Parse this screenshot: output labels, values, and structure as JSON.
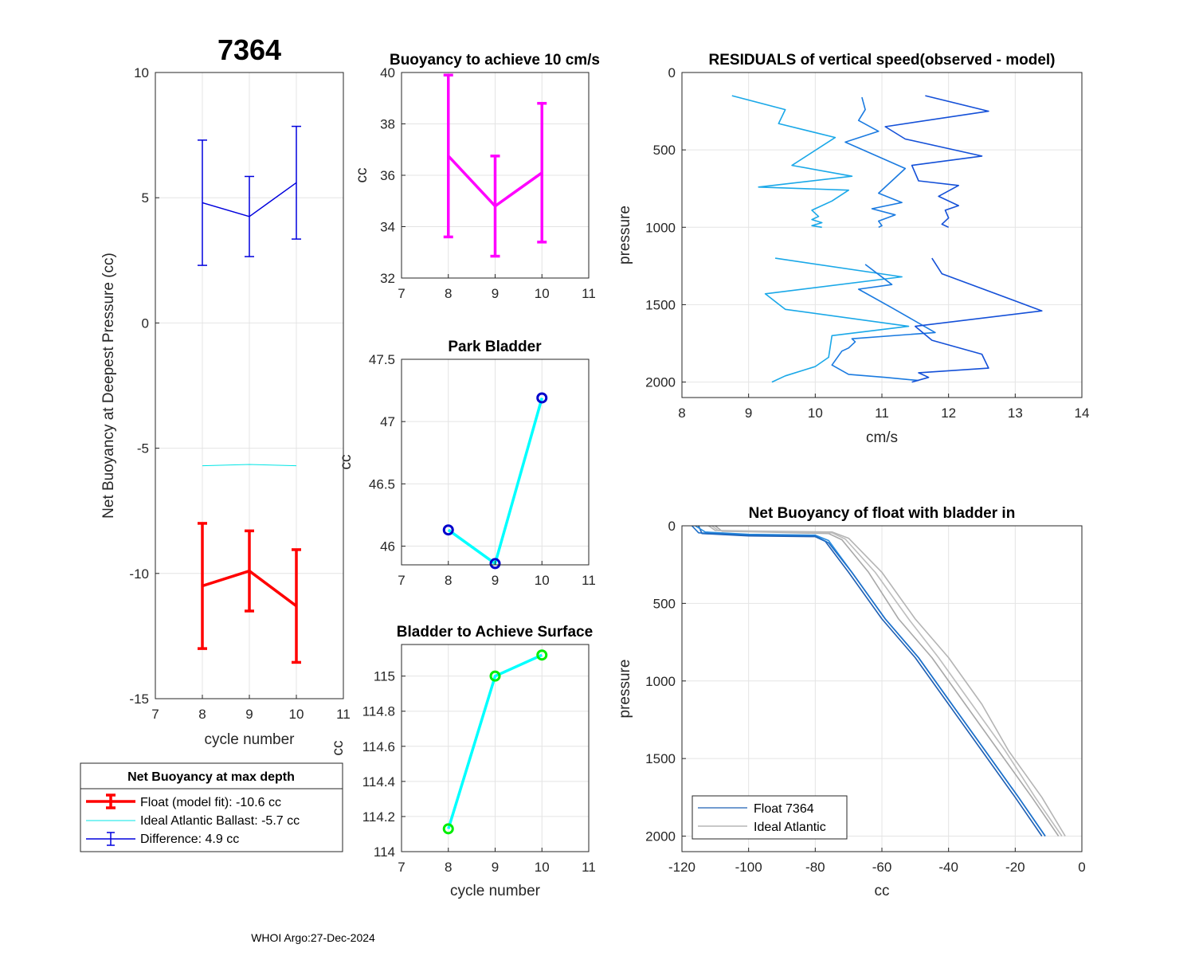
{
  "figure": {
    "float_id": "7364",
    "footer": "WHOI Argo:27-Dec-2024"
  },
  "chart_data": [
    {
      "id": "net_buoyancy_deep",
      "type": "line",
      "title": "7364",
      "xlabel": "cycle number",
      "ylabel": "Net Buoyancy at Deepest Pressure (cc)",
      "xlim": [
        7,
        11
      ],
      "ylim": [
        -15,
        10
      ],
      "xticks": [
        7,
        8,
        9,
        10,
        11
      ],
      "yticks": [
        -15,
        -10,
        -5,
        0,
        5,
        10
      ],
      "grid": true,
      "series": [
        {
          "name": "Float (model fit)",
          "color": "#ff0000",
          "width": 3.5,
          "x": [
            8,
            9,
            10
          ],
          "y": [
            -10.5,
            -9.9,
            -11.3
          ],
          "err": [
            2.5,
            1.6,
            2.25
          ]
        },
        {
          "name": "Ideal Atlantic Ballast",
          "color": "#00e5e5",
          "width": 1,
          "x": [
            8,
            9,
            10
          ],
          "y": [
            -5.7,
            -5.65,
            -5.7
          ]
        },
        {
          "name": "Difference",
          "color": "#0000dd",
          "width": 1.5,
          "x": [
            8,
            9,
            10
          ],
          "y": [
            4.8,
            4.25,
            5.6
          ],
          "err": [
            2.5,
            1.6,
            2.25
          ]
        }
      ],
      "legend": {
        "title": "Net Buoyancy at max depth",
        "entries": [
          "Float (model fit): -10.6 cc",
          "Ideal Atlantic Ballast:  -5.7 cc",
          "Difference:   4.9 cc"
        ]
      }
    },
    {
      "id": "buoyancy_10cms",
      "type": "line",
      "title": "Buoyancy to achieve 10 cm/s",
      "xlabel": "",
      "ylabel": "cc",
      "xlim": [
        7,
        11
      ],
      "ylim": [
        32,
        40
      ],
      "xticks": [
        7,
        8,
        9,
        10,
        11
      ],
      "yticks": [
        32,
        34,
        36,
        38,
        40
      ],
      "grid": true,
      "series": [
        {
          "name": "buoyancy",
          "color": "#ff00ff",
          "width": 3.5,
          "x": [
            8,
            9,
            10
          ],
          "y": [
            36.75,
            34.8,
            36.1
          ],
          "err": [
            3.15,
            1.95,
            2.7
          ]
        }
      ]
    },
    {
      "id": "park_bladder",
      "type": "line",
      "title": "Park Bladder",
      "xlabel": "",
      "ylabel": "cc",
      "xlim": [
        7,
        11
      ],
      "ylim": [
        45.85,
        47.5
      ],
      "xticks": [
        7,
        8,
        9,
        10,
        11
      ],
      "yticks": [
        46,
        46.5,
        47,
        47.5
      ],
      "grid": true,
      "series": [
        {
          "name": "park bladder",
          "color": "#00ffff",
          "marker_color": "#0000cc",
          "width": 3.5,
          "x": [
            8,
            9,
            10
          ],
          "y": [
            46.13,
            45.86,
            47.19
          ]
        }
      ]
    },
    {
      "id": "bladder_surface",
      "type": "line",
      "title": "Bladder to Achieve Surface",
      "xlabel": "cycle number",
      "ylabel": "cc",
      "xlim": [
        7,
        11
      ],
      "ylim": [
        114,
        115.18
      ],
      "xticks": [
        7,
        8,
        9,
        10,
        11
      ],
      "yticks": [
        114,
        114.2,
        114.4,
        114.6,
        114.8,
        115
      ],
      "grid": true,
      "series": [
        {
          "name": "surface bladder",
          "color": "#00ffff",
          "marker_color": "#00ee00",
          "width": 3.5,
          "x": [
            8,
            9,
            10
          ],
          "y": [
            114.13,
            115.0,
            115.12
          ]
        }
      ]
    },
    {
      "id": "residuals",
      "type": "line",
      "title": "RESIDUALS of vertical speed(observed - model)",
      "xlabel": "cm/s",
      "ylabel": "pressure",
      "xlim": [
        8,
        14
      ],
      "ylim": [
        0,
        2100
      ],
      "y_reversed": true,
      "xticks": [
        8,
        9,
        10,
        11,
        12,
        13,
        14
      ],
      "yticks": [
        0,
        500,
        1000,
        1500,
        2000
      ],
      "grid": true,
      "series": [
        {
          "name": "cyc8 up",
          "color": "#1aa8e8",
          "x": [
            8.75,
            9.55,
            9.45,
            10.3,
            9.65,
            10.55,
            9.15,
            10.5,
            10.25,
            9.95,
            10.05,
            9.95,
            10.1,
            9.95,
            10.1
          ],
          "y": [
            150,
            240,
            330,
            420,
            600,
            670,
            740,
            760,
            830,
            890,
            930,
            950,
            970,
            990,
            1000
          ]
        },
        {
          "name": "cyc9 up",
          "color": "#1a7ae0",
          "x": [
            10.7,
            10.75,
            10.65,
            10.95,
            10.45,
            11.35,
            10.95,
            11.3,
            10.85,
            11.2,
            10.95,
            11.0,
            10.95
          ],
          "y": [
            160,
            240,
            310,
            380,
            450,
            620,
            780,
            840,
            880,
            920,
            960,
            990,
            1000
          ]
        },
        {
          "name": "cyc10 up",
          "color": "#1450d8",
          "x": [
            11.65,
            12.6,
            11.05,
            11.35,
            12.5,
            11.45,
            11.55,
            12.15,
            11.85,
            12.15,
            11.95,
            12.0,
            11.9,
            12.0
          ],
          "y": [
            150,
            250,
            350,
            430,
            540,
            600,
            700,
            730,
            800,
            860,
            890,
            940,
            980,
            1000
          ]
        },
        {
          "name": "cyc8 deep",
          "color": "#1aa8e8",
          "x": [
            9.4,
            11.3,
            9.25,
            9.55,
            11.4,
            10.25,
            10.2,
            10.0,
            9.55,
            9.35
          ],
          "y": [
            1200,
            1320,
            1430,
            1530,
            1640,
            1700,
            1840,
            1900,
            1960,
            2000
          ]
        },
        {
          "name": "cyc9 deep",
          "color": "#1a7ae0",
          "x": [
            10.75,
            11.15,
            10.65,
            11.15,
            11.8,
            10.55,
            10.6,
            10.5,
            10.4,
            10.25,
            10.5,
            11.05,
            11.55
          ],
          "y": [
            1240,
            1370,
            1400,
            1520,
            1680,
            1720,
            1740,
            1780,
            1800,
            1890,
            1950,
            1970,
            1990
          ]
        },
        {
          "name": "cyc10 deep",
          "color": "#1450d8",
          "x": [
            11.75,
            11.9,
            13.4,
            11.5,
            11.75,
            12.5,
            12.6,
            11.55,
            11.7,
            11.45
          ],
          "y": [
            1200,
            1300,
            1540,
            1640,
            1730,
            1820,
            1910,
            1940,
            1970,
            2000
          ]
        }
      ]
    },
    {
      "id": "net_buoyancy_profile",
      "type": "line",
      "title": "Net Buoyancy of float with bladder in",
      "xlabel": "cc",
      "ylabel": "pressure",
      "xlim": [
        -120,
        0
      ],
      "ylim": [
        0,
        2100
      ],
      "y_reversed": true,
      "xticks": [
        -120,
        -100,
        -80,
        -60,
        -40,
        -20,
        0
      ],
      "yticks": [
        0,
        500,
        1000,
        1500,
        2000
      ],
      "grid": true,
      "legend": {
        "entries": [
          "Float 7364",
          "Ideal Atlantic"
        ]
      },
      "series": [
        {
          "name": "Float 7364 cyc8",
          "color": "#1f5fb3",
          "x": [
            -115,
            -114,
            -100,
            -80,
            -77,
            -70,
            -60,
            -50,
            -40,
            -30,
            -20,
            -12
          ],
          "y": [
            0,
            50,
            65,
            70,
            100,
            300,
            600,
            850,
            1150,
            1450,
            1750,
            2000
          ]
        },
        {
          "name": "Float 7364 cyc9",
          "color": "#2a8ee0",
          "x": [
            -116,
            -113,
            -100,
            -80,
            -76,
            -69,
            -59,
            -49,
            -39,
            -29,
            -19,
            -11
          ],
          "y": [
            0,
            40,
            55,
            60,
            95,
            300,
            600,
            850,
            1150,
            1450,
            1750,
            2000
          ]
        },
        {
          "name": "Float 7364 cyc10",
          "color": "#1d6fc9",
          "x": [
            -117,
            -115,
            -100,
            -80,
            -76,
            -69,
            -59,
            -49,
            -39,
            -29,
            -19,
            -11
          ],
          "y": [
            0,
            45,
            60,
            65,
            110,
            300,
            600,
            850,
            1150,
            1450,
            1750,
            2000
          ]
        },
        {
          "name": "Ideal Atlantic cyc8",
          "color": "#a8a8a8",
          "x": [
            -110,
            -108,
            -95,
            -76,
            -72,
            -64,
            -55,
            -45,
            -35,
            -25,
            -15,
            -7
          ],
          "y": [
            0,
            35,
            40,
            50,
            90,
            300,
            600,
            850,
            1150,
            1450,
            1750,
            2000
          ]
        },
        {
          "name": "Ideal Atlantic cyc9",
          "color": "#b4b4b4",
          "x": [
            -112,
            -110,
            -95,
            -75,
            -70,
            -60,
            -50,
            -40,
            -30,
            -22,
            -12,
            -5
          ],
          "y": [
            0,
            30,
            35,
            40,
            80,
            300,
            600,
            850,
            1150,
            1450,
            1750,
            2000
          ]
        },
        {
          "name": "Ideal Atlantic cyc10",
          "color": "#bdbdbd",
          "x": [
            -111,
            -109,
            -94,
            -75,
            -71,
            -62,
            -52,
            -43,
            -33,
            -23,
            -14,
            -6
          ],
          "y": [
            0,
            32,
            38,
            45,
            85,
            300,
            600,
            850,
            1150,
            1450,
            1750,
            2000
          ]
        }
      ]
    }
  ]
}
